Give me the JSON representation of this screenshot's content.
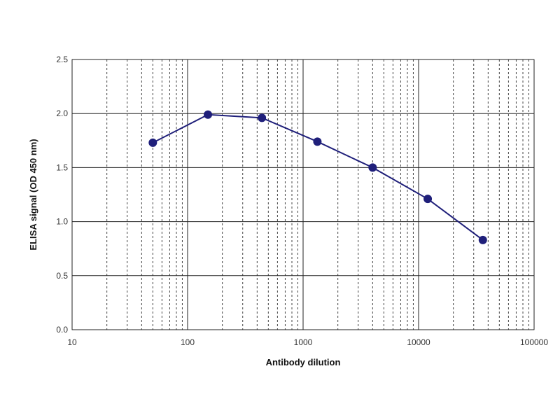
{
  "chart_data": {
    "type": "line",
    "x_scale": "log",
    "xlabel": "Antibody dilution",
    "ylabel": "ELISA  signal (OD 450 nm)",
    "xlim": [
      10,
      100000
    ],
    "ylim": [
      0,
      2.5
    ],
    "x_ticks": [
      10,
      100,
      1000,
      10000,
      100000
    ],
    "x_tick_labels": [
      "10",
      "100",
      "1000",
      "10000",
      "100000"
    ],
    "y_ticks": [
      0,
      0.5,
      1,
      1.5,
      2,
      2.5
    ],
    "y_tick_labels": [
      "0.0",
      "0.5",
      "1.0",
      "1.5",
      "2.0",
      "2.5"
    ],
    "grid": {
      "major": true,
      "minor_x": true,
      "minor_style": "dashed"
    },
    "legend": "none",
    "series": [
      {
        "color": "#1f1f7a",
        "marker": "circle",
        "points": [
          {
            "x": 50,
            "y": 1.73
          },
          {
            "x": 150,
            "y": 1.99
          },
          {
            "x": 440,
            "y": 1.96
          },
          {
            "x": 1330,
            "y": 1.74
          },
          {
            "x": 4000,
            "y": 1.5
          },
          {
            "x": 12000,
            "y": 1.21
          },
          {
            "x": 36000,
            "y": 0.83
          }
        ]
      }
    ]
  }
}
